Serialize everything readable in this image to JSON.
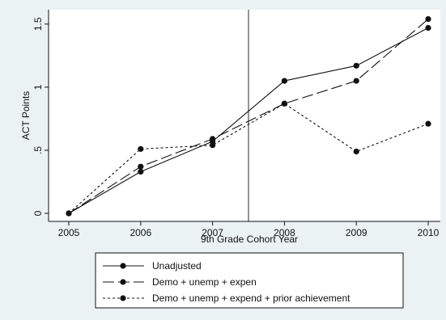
{
  "chart_data": {
    "type": "line",
    "title": "",
    "xlabel": "9th Grade Cohort Year",
    "ylabel": "ACT Points",
    "x": [
      2005,
      2006,
      2007,
      2008,
      2009,
      2010
    ],
    "x_ticks": [
      "2005",
      "2006",
      "2007",
      "2008",
      "2009",
      "2010"
    ],
    "y_ticks": [
      "0",
      ".5",
      "1",
      "1.5"
    ],
    "y_tick_values": [
      0,
      0.5,
      1,
      1.5
    ],
    "xlim": [
      2005,
      2010
    ],
    "ylim": [
      0,
      1.55
    ],
    "vertical_reference_line_x": 2007.5,
    "grid": false,
    "legend_position": "bottom",
    "series": [
      {
        "name": "Unadjusted",
        "style": "solid",
        "values": [
          0,
          0.33,
          0.57,
          1.05,
          1.17,
          1.47
        ]
      },
      {
        "name": "Demo + unemp + expen",
        "style": "longdash",
        "values": [
          0,
          0.37,
          0.59,
          0.87,
          1.05,
          1.54
        ]
      },
      {
        "name": "Demo + unemp + expend + prior achievement",
        "style": "shortdash",
        "values": [
          0,
          0.51,
          0.54,
          0.87,
          0.49,
          0.71
        ]
      }
    ]
  },
  "colors": {
    "background": "#eaf2f3",
    "plot": "#ffffff",
    "ink": "#111111"
  }
}
